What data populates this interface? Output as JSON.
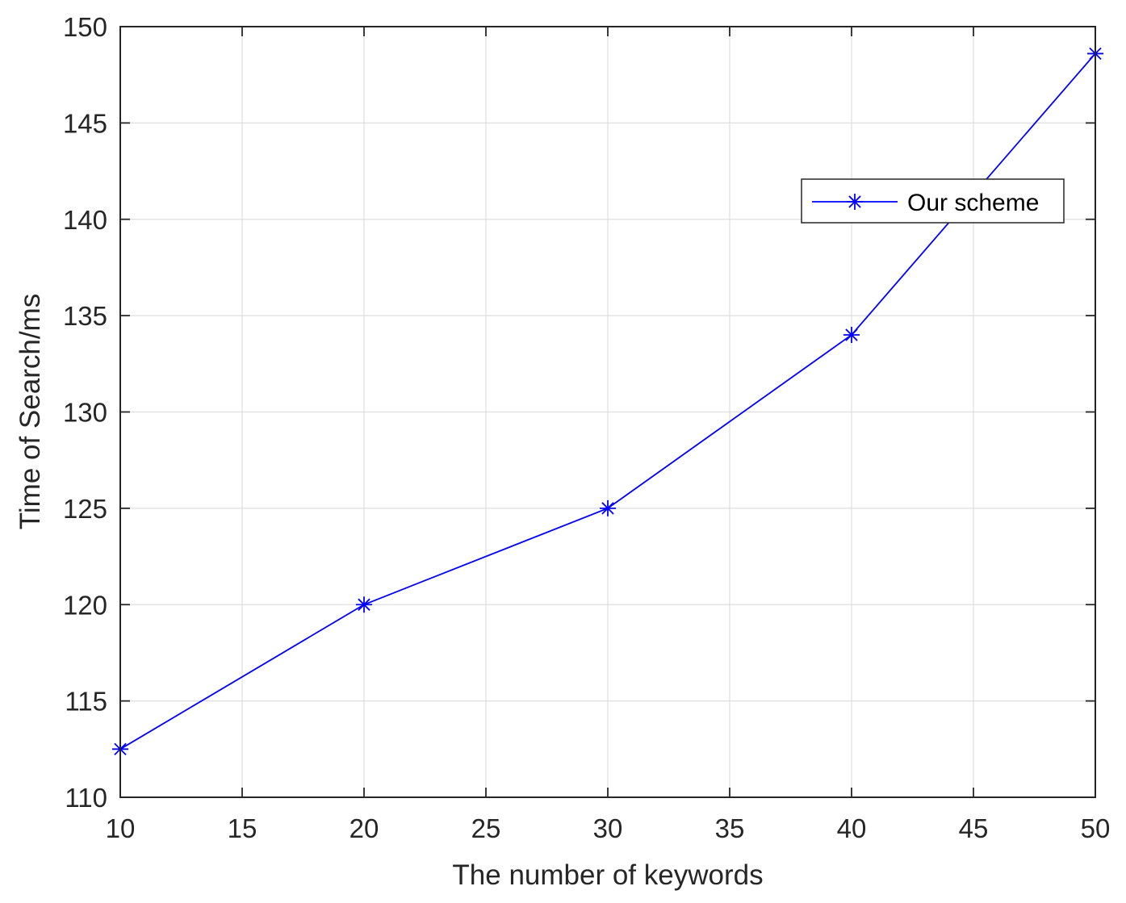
{
  "chart_data": {
    "type": "line",
    "title": "",
    "xlabel": "The number of keywords",
    "ylabel": "Time of Search/ms",
    "xlim": [
      10,
      50
    ],
    "ylim": [
      110,
      150
    ],
    "xticks": [
      10,
      15,
      20,
      25,
      30,
      35,
      40,
      45,
      50
    ],
    "yticks": [
      110,
      115,
      120,
      125,
      130,
      135,
      140,
      145,
      150
    ],
    "grid": true,
    "legend_position": "top-right",
    "series": [
      {
        "name": "Our scheme",
        "color": "#0000ff",
        "marker": "asterisk",
        "x": [
          10,
          20,
          30,
          40,
          50
        ],
        "y": [
          112.5,
          120,
          125,
          134,
          148.6
        ]
      }
    ]
  }
}
